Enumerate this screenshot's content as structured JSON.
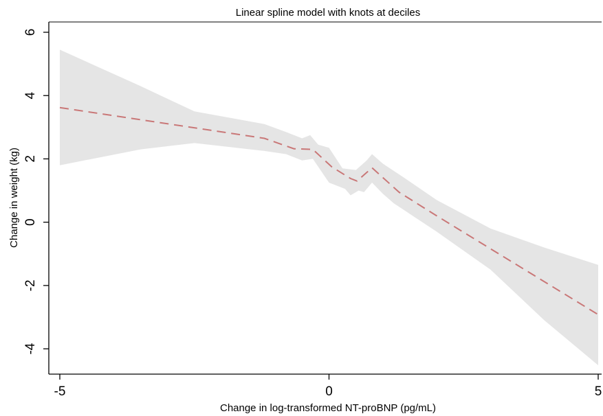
{
  "chart_data": {
    "type": "area",
    "title": "Linear spline model with knots at deciles",
    "xlabel": "Change in log-transformed NT-proBNP (pg/mL)",
    "ylabel": "Change in weight (kg)",
    "xlim": [
      -5,
      5
    ],
    "ylim": [
      -4.8,
      6
    ],
    "x_ticks": [
      -5,
      0,
      5
    ],
    "y_ticks": [
      -4,
      -2,
      0,
      2,
      4,
      6
    ],
    "x_tick_labels": [
      "-5",
      "0",
      "5"
    ],
    "y_tick_labels": [
      "-4",
      "-2",
      "0",
      "2",
      "4",
      "6"
    ],
    "grid": false,
    "legend": "none",
    "colors": {
      "line": "#c97777",
      "band": "#e5e5e5"
    },
    "series": [
      {
        "role": "estimate",
        "style": "dashed",
        "x": [
          -5.0,
          -1.2,
          -0.65,
          -0.3,
          0.05,
          0.4,
          0.52,
          0.8,
          1.3,
          2.0,
          5.0
        ],
        "y": [
          3.62,
          2.65,
          2.32,
          2.3,
          1.75,
          1.38,
          1.3,
          1.72,
          0.95,
          0.2,
          -2.92
        ]
      },
      {
        "role": "ci_upper",
        "x": [
          -5.0,
          -3.5,
          -2.5,
          -1.2,
          -0.8,
          -0.5,
          -0.35,
          -0.2,
          0.0,
          0.25,
          0.5,
          0.7,
          0.8,
          1.0,
          1.4,
          2.0,
          3.0,
          4.0,
          5.0
        ],
        "y": [
          5.45,
          4.3,
          3.5,
          3.1,
          2.85,
          2.65,
          2.75,
          2.45,
          2.35,
          1.7,
          1.65,
          1.95,
          2.15,
          1.85,
          1.4,
          0.7,
          -0.2,
          -0.8,
          -1.35
        ]
      },
      {
        "role": "ci_lower",
        "x": [
          -5.0,
          -3.5,
          -2.5,
          -1.2,
          -0.8,
          -0.5,
          -0.3,
          0.0,
          0.3,
          0.4,
          0.55,
          0.65,
          0.8,
          1.0,
          1.2,
          2.0,
          3.0,
          4.0,
          5.0
        ],
        "y": [
          1.8,
          2.3,
          2.5,
          2.25,
          2.15,
          1.95,
          2.0,
          1.25,
          1.05,
          0.85,
          1.0,
          0.95,
          1.25,
          0.9,
          0.6,
          -0.3,
          -1.5,
          -3.1,
          -4.52
        ]
      }
    ]
  }
}
